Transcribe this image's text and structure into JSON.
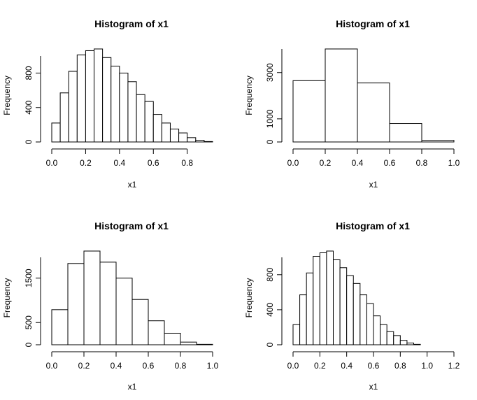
{
  "chart_data": [
    {
      "type": "bar",
      "title": "Histogram of x1",
      "xlabel": "x1",
      "ylabel": "Frequency",
      "breaks": [
        0.0,
        0.05,
        0.1,
        0.15,
        0.2,
        0.25,
        0.3,
        0.35,
        0.4,
        0.45,
        0.5,
        0.55,
        0.6,
        0.65,
        0.7,
        0.75,
        0.8,
        0.85,
        0.9,
        0.95
      ],
      "values": [
        220,
        570,
        820,
        1010,
        1060,
        1080,
        980,
        880,
        800,
        700,
        550,
        470,
        320,
        220,
        150,
        105,
        50,
        20,
        5
      ],
      "xlim": [
        0.0,
        0.95
      ],
      "ylim": [
        0,
        1080
      ],
      "xticks": [
        0.0,
        0.2,
        0.4,
        0.6,
        0.8
      ],
      "xtick_labels": [
        "0.0",
        "0.2",
        "0.4",
        "0.6",
        "0.8"
      ],
      "yticks": [
        0,
        400,
        800
      ],
      "ytick_labels": [
        "0",
        "400",
        "800"
      ]
    },
    {
      "type": "bar",
      "title": "Histogram of x1",
      "xlabel": "x1",
      "ylabel": "Frequency",
      "breaks": [
        0.0,
        0.2,
        0.4,
        0.6,
        0.8,
        1.0
      ],
      "values": [
        2650,
        4020,
        2550,
        800,
        70
      ],
      "xlim": [
        0.0,
        1.0
      ],
      "ylim": [
        0,
        4020
      ],
      "xticks": [
        0.0,
        0.2,
        0.4,
        0.6,
        0.8,
        1.0
      ],
      "xtick_labels": [
        "0.0",
        "0.2",
        "0.4",
        "0.6",
        "0.8",
        "1.0"
      ],
      "yticks": [
        0,
        1000,
        3000
      ],
      "ytick_labels": [
        "0",
        "1000",
        "3000"
      ]
    },
    {
      "type": "bar",
      "title": "Histogram of x1",
      "xlabel": "x1",
      "ylabel": "Frequency",
      "breaks": [
        0.0,
        0.1,
        0.2,
        0.3,
        0.4,
        0.5,
        0.6,
        0.7,
        0.8,
        0.9,
        1.0
      ],
      "values": [
        790,
        1830,
        2110,
        1860,
        1500,
        1020,
        540,
        260,
        60,
        10
      ],
      "xlim": [
        0.0,
        1.0
      ],
      "ylim": [
        0,
        2110
      ],
      "xticks": [
        0.0,
        0.2,
        0.4,
        0.6,
        0.8,
        1.0
      ],
      "xtick_labels": [
        "0.0",
        "0.2",
        "0.4",
        "0.6",
        "0.8",
        "1.0"
      ],
      "yticks": [
        0,
        500,
        1500
      ],
      "ytick_labels": [
        "0",
        "500",
        "1500"
      ]
    },
    {
      "type": "bar",
      "title": "Histogram of x1",
      "xlabel": "x1",
      "ylabel": "Frequency",
      "breaks": [
        0.0,
        0.05,
        0.1,
        0.15,
        0.2,
        0.25,
        0.3,
        0.35,
        0.4,
        0.45,
        0.5,
        0.55,
        0.6,
        0.65,
        0.7,
        0.75,
        0.8,
        0.85,
        0.9,
        0.95
      ],
      "values": [
        230,
        570,
        820,
        1010,
        1050,
        1070,
        970,
        880,
        790,
        700,
        570,
        470,
        330,
        230,
        150,
        105,
        50,
        20,
        5
      ],
      "xlim": [
        0.0,
        1.2
      ],
      "ylim": [
        0,
        1070
      ],
      "xticks": [
        0.0,
        0.2,
        0.4,
        0.6,
        0.8,
        1.0,
        1.2
      ],
      "xtick_labels": [
        "0.0",
        "0.2",
        "0.4",
        "0.6",
        "0.8",
        "1.0",
        "1.2"
      ],
      "yticks": [
        0,
        400,
        800
      ],
      "ytick_labels": [
        "0",
        "400",
        "800"
      ]
    }
  ]
}
